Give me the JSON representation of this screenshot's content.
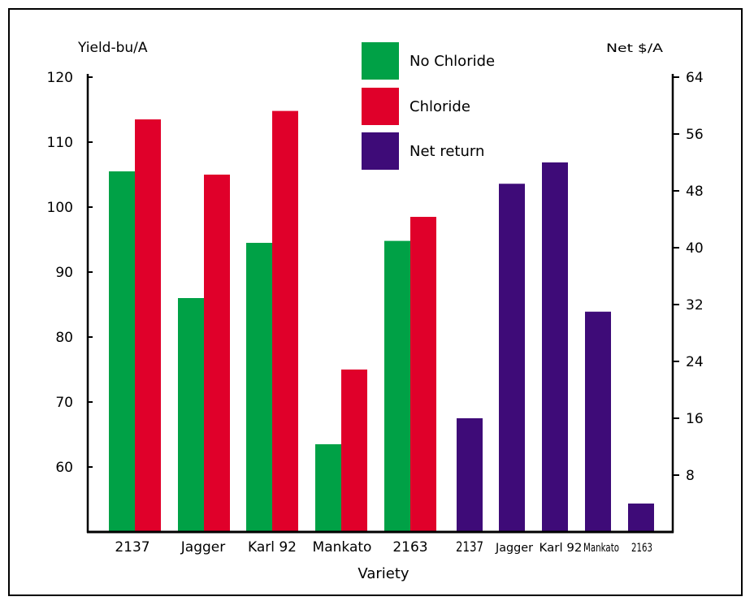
{
  "chart_data": {
    "type": "bar",
    "xlabel": "Variety",
    "ylabel": "Yield-bu/A",
    "y2label": "Net $/A",
    "ylim": [
      50,
      120
    ],
    "y2lim": [
      0,
      64
    ],
    "yticks": [
      60,
      70,
      80,
      90,
      100,
      110,
      120
    ],
    "y2ticks": [
      8,
      16,
      24,
      32,
      40,
      48,
      56,
      64
    ],
    "yield_categories": [
      "2137",
      "Jagger",
      "Karl 92",
      "Mankato",
      "2163"
    ],
    "net_categories": [
      "2137",
      "Jagger",
      "Karl 92",
      "Mankato",
      "2163"
    ],
    "series": [
      {
        "name": "No Chloride",
        "axis": "left",
        "color": "#00a146",
        "values": [
          105.5,
          86,
          94.5,
          63.5,
          94.8
        ]
      },
      {
        "name": "Chloride",
        "axis": "left",
        "color": "#e0002a",
        "values": [
          113.5,
          105,
          114.8,
          75,
          98.5
        ]
      },
      {
        "name": "Net return",
        "axis": "right",
        "color": "#3e0b78",
        "values": [
          16,
          49,
          52,
          31,
          4
        ]
      }
    ],
    "legend_position": "top-center"
  }
}
